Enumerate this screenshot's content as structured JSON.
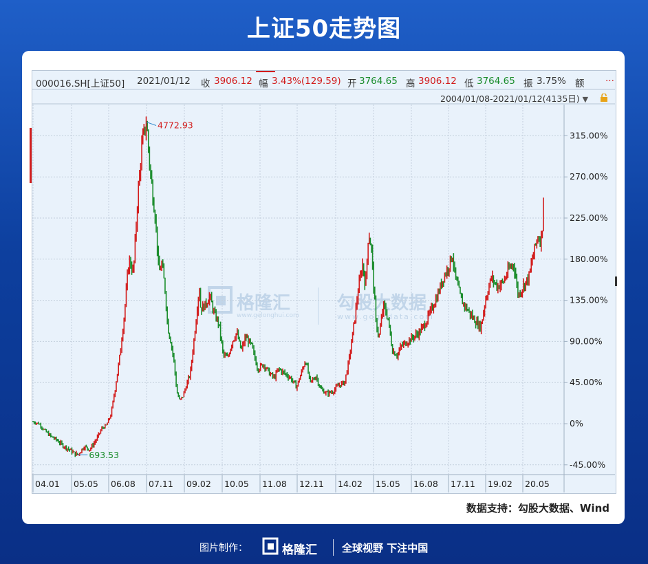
{
  "page": {
    "title": "上证50走势图"
  },
  "info_bar": {
    "code": "000016.SH[上证50]",
    "date": "2021/01/12",
    "close_label": "收",
    "close_value": "3906.12",
    "change_label": "幅",
    "change_value": "3.43%(129.59)",
    "open_label": "开",
    "open_value": "3764.65",
    "high_label": "高",
    "high_value": "3906.12",
    "low_label": "低",
    "low_value": "3764.65",
    "amp_label": "振",
    "amp_value": "3.75%",
    "amount_label": "额",
    "more": "..."
  },
  "range_bar": {
    "text": "2004/01/08-2021/01/12(4135日)",
    "dropdown_icon": "triangle-down-icon",
    "lock_icon": "lock-icon"
  },
  "source_note": "数据支持：勾股大数据、Wind",
  "watermark": {
    "brand1": "格隆汇",
    "url1": "www.gelonghui.com",
    "brand2": "勾股大数据",
    "url2": "www.gogudata.com"
  },
  "footer": {
    "credit": "图片制作：",
    "brand": "格隆汇",
    "slogan": "全球视野 下注中国"
  },
  "colors": {
    "up": "#d21c1c",
    "down": "#198c2b",
    "background": "#0d3f9e",
    "panel": "#e9f2fb",
    "grid": "#c3cfdc"
  },
  "chart_data": {
    "type": "line",
    "title": "",
    "xlabel": "",
    "ylabel": "",
    "x_tick_labels": [
      "04.01",
      "05.05",
      "06.08",
      "07.11",
      "09.02",
      "10.05",
      "11.08",
      "12.11",
      "14.02",
      "15.05",
      "16.08",
      "17.11",
      "19.02",
      "20.05"
    ],
    "y_tick_labels": [
      "315.00%",
      "270.00%",
      "225.00%",
      "180.00%",
      "135.00%",
      "90.00%",
      "45.00%",
      "0%",
      "-45.00%"
    ],
    "ylim": [
      -55,
      330
    ],
    "grid": true,
    "annotations": [
      {
        "label": "4772.93",
        "x": 2007.79,
        "y": 330,
        "color": "red"
      },
      {
        "label": "693.53",
        "x": 2005.5,
        "y": -34,
        "color": "green"
      }
    ],
    "series": [
      {
        "values_unit": "% change since 2004/01/08",
        "points": [
          [
            2004.0,
            2
          ],
          [
            2004.2,
            0
          ],
          [
            2004.4,
            -8
          ],
          [
            2004.6,
            -14
          ],
          [
            2004.8,
            -18
          ],
          [
            2005.0,
            -24
          ],
          [
            2005.2,
            -28
          ],
          [
            2005.4,
            -33
          ],
          [
            2005.5,
            -34
          ],
          [
            2005.7,
            -25
          ],
          [
            2005.9,
            -28
          ],
          [
            2006.1,
            -18
          ],
          [
            2006.3,
            -5
          ],
          [
            2006.45,
            -2
          ],
          [
            2006.6,
            10
          ],
          [
            2006.75,
            40
          ],
          [
            2006.9,
            75
          ],
          [
            2007.05,
            120
          ],
          [
            2007.2,
            180
          ],
          [
            2007.35,
            165
          ],
          [
            2007.5,
            250
          ],
          [
            2007.65,
            310
          ],
          [
            2007.79,
            330
          ],
          [
            2007.9,
            280
          ],
          [
            2008.0,
            250
          ],
          [
            2008.1,
            220
          ],
          [
            2008.2,
            165
          ],
          [
            2008.3,
            175
          ],
          [
            2008.4,
            150
          ],
          [
            2008.5,
            105
          ],
          [
            2008.6,
            90
          ],
          [
            2008.7,
            70
          ],
          [
            2008.8,
            35
          ],
          [
            2008.9,
            25
          ],
          [
            2009.0,
            30
          ],
          [
            2009.1,
            40
          ],
          [
            2009.25,
            55
          ],
          [
            2009.4,
            100
          ],
          [
            2009.55,
            150
          ],
          [
            2009.6,
            125
          ],
          [
            2009.75,
            130
          ],
          [
            2009.9,
            140
          ],
          [
            2010.05,
            120
          ],
          [
            2010.2,
            110
          ],
          [
            2010.35,
            75
          ],
          [
            2010.5,
            72
          ],
          [
            2010.65,
            90
          ],
          [
            2010.8,
            100
          ],
          [
            2010.95,
            80
          ],
          [
            2011.1,
            95
          ],
          [
            2011.3,
            85
          ],
          [
            2011.5,
            60
          ],
          [
            2011.7,
            65
          ],
          [
            2011.9,
            55
          ],
          [
            2012.05,
            50
          ],
          [
            2012.2,
            60
          ],
          [
            2012.4,
            55
          ],
          [
            2012.6,
            50
          ],
          [
            2012.8,
            40
          ],
          [
            2012.95,
            55
          ],
          [
            2013.1,
            70
          ],
          [
            2013.25,
            45
          ],
          [
            2013.45,
            52
          ],
          [
            2013.6,
            38
          ],
          [
            2013.8,
            33
          ],
          [
            2014.0,
            35
          ],
          [
            2014.2,
            42
          ],
          [
            2014.4,
            45
          ],
          [
            2014.55,
            70
          ],
          [
            2014.7,
            105
          ],
          [
            2014.85,
            145
          ],
          [
            2015.0,
            175
          ],
          [
            2015.1,
            150
          ],
          [
            2015.2,
            210
          ],
          [
            2015.3,
            190
          ],
          [
            2015.45,
            110
          ],
          [
            2015.55,
            95
          ],
          [
            2015.7,
            130
          ],
          [
            2015.85,
            115
          ],
          [
            2016.0,
            80
          ],
          [
            2016.15,
            75
          ],
          [
            2016.3,
            85
          ],
          [
            2016.5,
            90
          ],
          [
            2016.7,
            95
          ],
          [
            2016.9,
            100
          ],
          [
            2017.1,
            110
          ],
          [
            2017.3,
            125
          ],
          [
            2017.5,
            140
          ],
          [
            2017.7,
            160
          ],
          [
            2017.85,
            170
          ],
          [
            2018.0,
            185
          ],
          [
            2018.1,
            160
          ],
          [
            2018.3,
            135
          ],
          [
            2018.5,
            125
          ],
          [
            2018.7,
            115
          ],
          [
            2018.95,
            105
          ],
          [
            2019.1,
            135
          ],
          [
            2019.3,
            160
          ],
          [
            2019.5,
            150
          ],
          [
            2019.7,
            155
          ],
          [
            2019.9,
            170
          ],
          [
            2020.05,
            175
          ],
          [
            2020.2,
            140
          ],
          [
            2020.35,
            150
          ],
          [
            2020.55,
            160
          ],
          [
            2020.7,
            185
          ],
          [
            2020.85,
            205
          ],
          [
            2020.95,
            200
          ],
          [
            2021.03,
            225
          ],
          [
            2021.04,
            250
          ]
        ]
      }
    ]
  }
}
